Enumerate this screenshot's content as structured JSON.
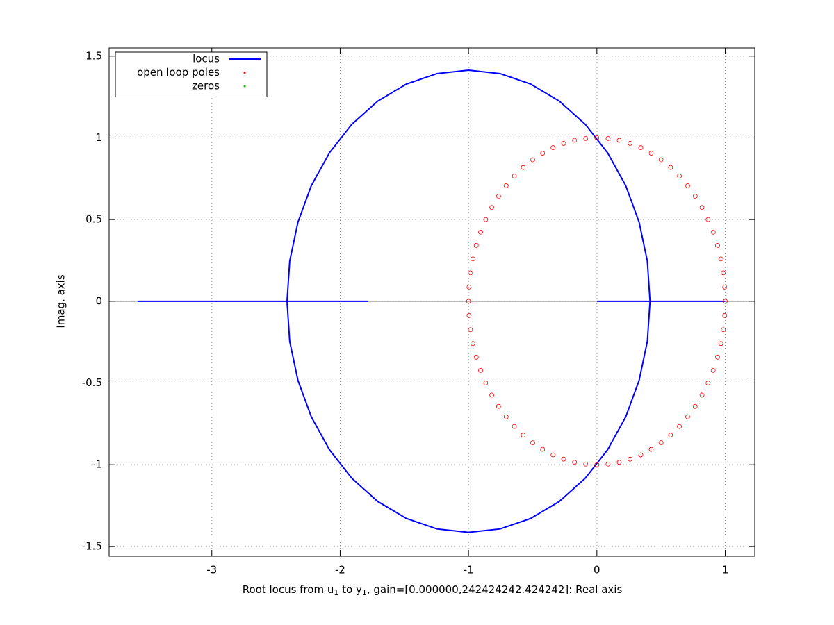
{
  "chart_data": {
    "type": "line",
    "ylabel": "Imag. axis",
    "xlabel_parts": [
      "Root locus from u",
      "1",
      " to y",
      "1",
      ", gain=[0.000000,242424242.424242]: Real axis"
    ],
    "xlim": [
      -3.8,
      1.23
    ],
    "ylim": [
      -1.56,
      1.55
    ],
    "xticks": [
      -3,
      -2,
      -1,
      0,
      1
    ],
    "yticks": [
      -1.5,
      -1,
      -0.5,
      0,
      0.5,
      1,
      1.5
    ],
    "grid": true,
    "legend": "top left",
    "series": [
      {
        "name": "locus",
        "color": "#0000ff",
        "style": "line",
        "x": [
          0.414,
          0.393,
          0.329,
          0.225,
          0.083,
          -0.091,
          -0.293,
          -0.516,
          -0.754,
          -1,
          -1.246,
          -1.484,
          -1.707,
          -1.909,
          -2.083,
          -2.225,
          -2.329,
          -2.393,
          -2.414,
          -2.393,
          -2.329,
          -2.225,
          -2.083,
          -1.909,
          -1.707,
          -1.484,
          -1.246,
          -1,
          -0.754,
          -0.516,
          -0.293,
          -0.091,
          0.083,
          0.225,
          0.329,
          0.393,
          0.414,
          null,
          -3.578,
          -1.78,
          null,
          0,
          1
        ],
        "y": [
          0,
          0.246,
          0.484,
          0.707,
          0.909,
          1.083,
          1.225,
          1.329,
          1.393,
          1.414,
          1.393,
          1.329,
          1.225,
          1.083,
          0.909,
          0.707,
          0.484,
          0.246,
          0,
          -0.246,
          -0.484,
          -0.707,
          -0.909,
          -1.083,
          -1.225,
          -1.329,
          -1.393,
          -1.414,
          -1.393,
          -1.329,
          -1.225,
          -1.083,
          -0.909,
          -0.707,
          -0.484,
          -0.246,
          0,
          null,
          0,
          0,
          null,
          0,
          0
        ]
      },
      {
        "name": "open loop poles",
        "color": "#ff0000",
        "style": "marker",
        "x": [
          1,
          0.996,
          0.985,
          0.966,
          0.94,
          0.906,
          0.866,
          0.819,
          0.766,
          0.707,
          0.643,
          0.574,
          0.5,
          0.423,
          0.342,
          0.259,
          0.174,
          0.087,
          0,
          -0.087,
          -0.174,
          -0.259,
          -0.342,
          -0.423,
          -0.5,
          -0.574,
          -0.643,
          -0.707,
          -0.766,
          -0.819,
          -0.866,
          -0.906,
          -0.94,
          -0.966,
          -0.985,
          -0.996,
          -1,
          -0.996,
          -0.985,
          -0.966,
          -0.94,
          -0.906,
          -0.866,
          -0.819,
          -0.766,
          -0.707,
          -0.643,
          -0.574,
          -0.5,
          -0.423,
          -0.342,
          -0.259,
          -0.174,
          -0.087,
          0,
          0.087,
          0.174,
          0.259,
          0.342,
          0.423,
          0.5,
          0.574,
          0.643,
          0.707,
          0.766,
          0.819,
          0.866,
          0.906,
          0.94,
          0.966,
          0.985,
          0.996
        ],
        "y": [
          0,
          0.087,
          0.174,
          0.259,
          0.342,
          0.423,
          0.5,
          0.574,
          0.643,
          0.707,
          0.766,
          0.819,
          0.866,
          0.906,
          0.94,
          0.966,
          0.985,
          0.996,
          1,
          0.996,
          0.985,
          0.966,
          0.94,
          0.906,
          0.866,
          0.819,
          0.766,
          0.707,
          0.643,
          0.574,
          0.5,
          0.423,
          0.342,
          0.259,
          0.174,
          0.087,
          0,
          -0.087,
          -0.174,
          -0.259,
          -0.342,
          -0.423,
          -0.5,
          -0.574,
          -0.643,
          -0.707,
          -0.766,
          -0.819,
          -0.866,
          -0.906,
          -0.94,
          -0.966,
          -0.985,
          -0.996,
          -1,
          -0.996,
          -0.985,
          -0.966,
          -0.94,
          -0.906,
          -0.866,
          -0.819,
          -0.766,
          -0.707,
          -0.643,
          -0.574,
          -0.5,
          -0.423,
          -0.342,
          -0.259,
          -0.174,
          -0.087
        ]
      },
      {
        "name": "zeros",
        "color": "#00c000",
        "style": "marker",
        "x": [],
        "y": []
      }
    ]
  }
}
